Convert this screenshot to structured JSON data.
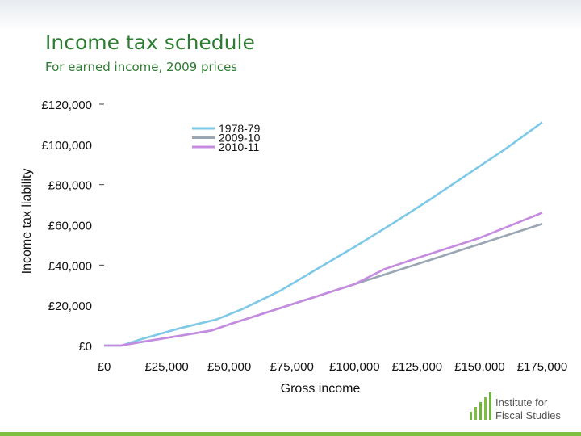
{
  "slide": {
    "title": "Income tax schedule",
    "subtitle": "For earned income, 2009 prices"
  },
  "logo": {
    "text_line1": "Institute for",
    "text_line2": "Fiscal Studies",
    "accent_color": "#7fbf3f",
    "bar_color": "#6fb43f"
  },
  "chart_data": {
    "type": "line",
    "xlabel": "Gross income",
    "ylabel": "Income tax liability",
    "xlim": [
      0,
      175000
    ],
    "ylim": [
      0,
      120000
    ],
    "x_ticks": [
      0,
      25000,
      50000,
      75000,
      100000,
      125000,
      150000,
      175000
    ],
    "x_tick_labels": [
      "£0",
      "£25,000",
      "£50,000",
      "£75,000",
      "£100,000",
      "£125,000",
      "£150,000",
      "£175,000"
    ],
    "y_ticks": [
      0,
      20000,
      40000,
      60000,
      80000,
      100000,
      120000
    ],
    "y_tick_labels": [
      "£0",
      "£20,000",
      "£40,000",
      "£60,000",
      "£80,000",
      "£100,000",
      "£120,000"
    ],
    "grid": false,
    "legend_position": "top-center",
    "series": [
      {
        "name": "1978-79",
        "color": "#7ec8e8",
        "points": [
          [
            0,
            0
          ],
          [
            7000,
            0
          ],
          [
            15000,
            3200
          ],
          [
            30000,
            8500
          ],
          [
            45000,
            13000
          ],
          [
            55000,
            18000
          ],
          [
            70000,
            27000
          ],
          [
            85000,
            38000
          ],
          [
            100000,
            49000
          ],
          [
            115000,
            60500
          ],
          [
            130000,
            72500
          ],
          [
            145000,
            85000
          ],
          [
            160000,
            97500
          ],
          [
            175000,
            111000
          ]
        ]
      },
      {
        "name": "2009-10",
        "color": "#9aa6b4",
        "points": [
          [
            0,
            0
          ],
          [
            6500,
            0
          ],
          [
            15000,
            1800
          ],
          [
            30000,
            4800
          ],
          [
            43000,
            7500
          ],
          [
            50000,
            10500
          ],
          [
            60000,
            14500
          ],
          [
            75000,
            20500
          ],
          [
            100000,
            30500
          ],
          [
            125000,
            40500
          ],
          [
            150000,
            50500
          ],
          [
            175000,
            60500
          ]
        ]
      },
      {
        "name": "2010-11",
        "color": "#c48be0",
        "points": [
          [
            0,
            0
          ],
          [
            6500,
            0
          ],
          [
            15000,
            1800
          ],
          [
            30000,
            4800
          ],
          [
            43000,
            7500
          ],
          [
            50000,
            10500
          ],
          [
            60000,
            14500
          ],
          [
            75000,
            20500
          ],
          [
            100000,
            30500
          ],
          [
            112000,
            38000
          ],
          [
            125000,
            43500
          ],
          [
            150000,
            53500
          ],
          [
            175000,
            66000
          ]
        ]
      }
    ]
  }
}
